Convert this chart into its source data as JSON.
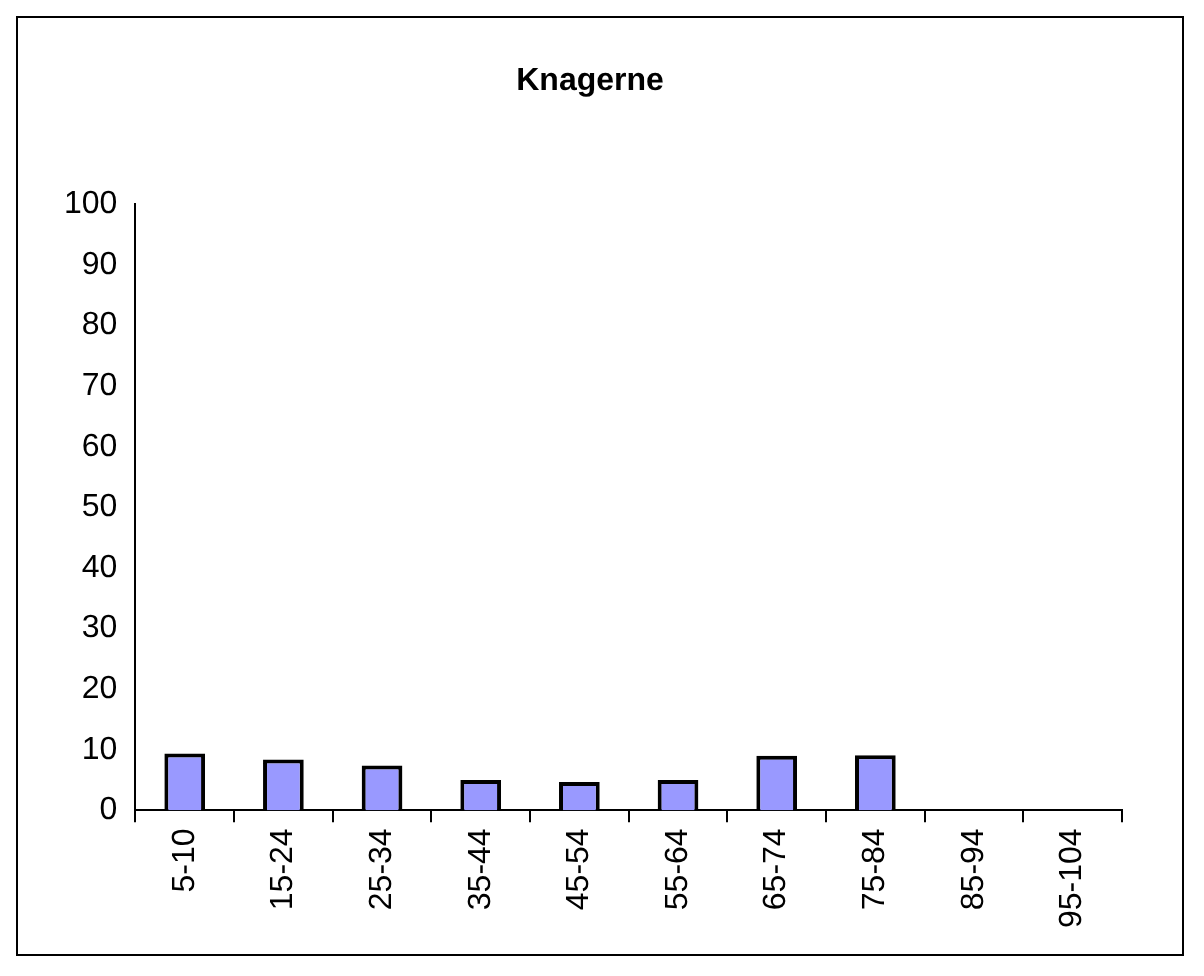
{
  "chart_data": {
    "type": "bar",
    "title": "Knagerne",
    "categories": [
      "5-10",
      "15-24",
      "25-34",
      "35-44",
      "45-54",
      "55-64",
      "65-74",
      "75-84",
      "85-94",
      "95-104"
    ],
    "values": [
      9.4,
      8.4,
      7.4,
      5,
      4.7,
      5,
      9,
      9.1,
      null,
      null
    ],
    "color": "#9999ff",
    "ylim": [
      0,
      100
    ],
    "yticks": [
      0,
      10,
      20,
      30,
      40,
      50,
      60,
      70,
      80,
      90,
      100
    ],
    "grid": false,
    "legend": false
  }
}
